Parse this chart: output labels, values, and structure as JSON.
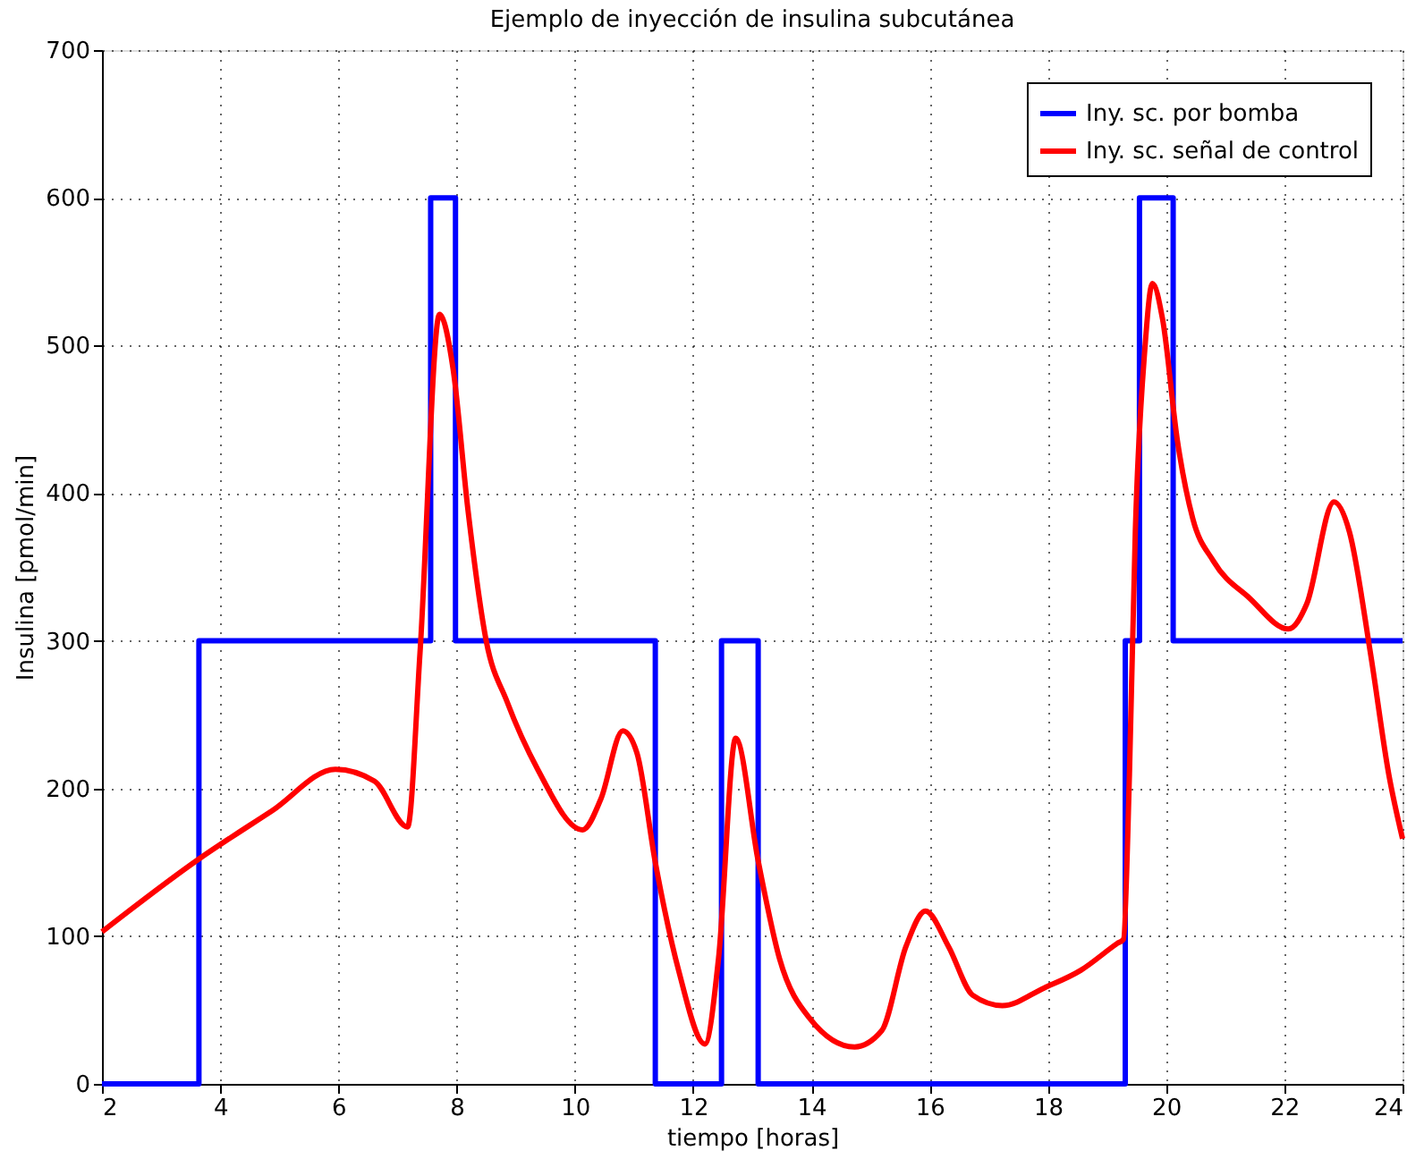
{
  "chart_data": {
    "type": "line",
    "title": "Ejemplo de inyección de insulina subcutánea",
    "xlabel": "tiempo [horas]",
    "ylabel": "Insulina [pmol/min]",
    "xlim": [
      2,
      24
    ],
    "xticks": [
      2,
      4,
      6,
      8,
      10,
      12,
      14,
      16,
      18,
      20,
      22,
      24
    ],
    "ylim": [
      0,
      700
    ],
    "yticks": [
      0,
      100,
      200,
      300,
      400,
      500,
      600,
      700
    ],
    "grid": true,
    "legend": "top right",
    "line_style": "solid",
    "marker": "none",
    "series": [
      {
        "name": "Iny. sc. por bomba",
        "type": "step",
        "color": "#0000ff",
        "x": [
          2,
          3.64,
          7.56,
          7.98,
          11.36,
          12.48,
          13.1,
          19.31,
          19.55,
          20.12,
          24
        ],
        "values": [
          0,
          300,
          600,
          300,
          0,
          300,
          0,
          300,
          600,
          300,
          300
        ]
      },
      {
        "name": "Iny. sc. señal de control",
        "type": "line",
        "color": "#ff0000",
        "x": [
          2,
          3.63,
          4.88,
          5.95,
          6.61,
          7.17,
          7.38,
          7.71,
          7.94,
          8.19,
          8.5,
          8.85,
          9.37,
          10.13,
          10.44,
          10.81,
          11.05,
          11.36,
          11.76,
          12.2,
          12.43,
          12.72,
          13.1,
          13.46,
          13.98,
          14.73,
          15.19,
          15.6,
          15.93,
          16.32,
          16.73,
          17.23,
          17.94,
          18.56,
          19.17,
          19.28,
          19.38,
          19.48,
          19.64,
          19.77,
          19.94,
          20.19,
          20.45,
          20.8,
          21.41,
          22.07,
          22.38,
          22.84,
          23.1,
          23.46,
          23.77,
          24
        ],
        "values": [
          103,
          152,
          185,
          213,
          205,
          174,
          292,
          521,
          484,
          389,
          300,
          259,
          213,
          172,
          193,
          239,
          224,
          150,
          76,
          27,
          85,
          234,
          151,
          85,
          44,
          25,
          36,
          93,
          117,
          93,
          60,
          53,
          65,
          77,
          95,
          98,
          209,
          374,
          497,
          542,
          518,
          436,
          383,
          354,
          329,
          308,
          325,
          394,
          374,
          291,
          209,
          166
        ]
      }
    ]
  }
}
